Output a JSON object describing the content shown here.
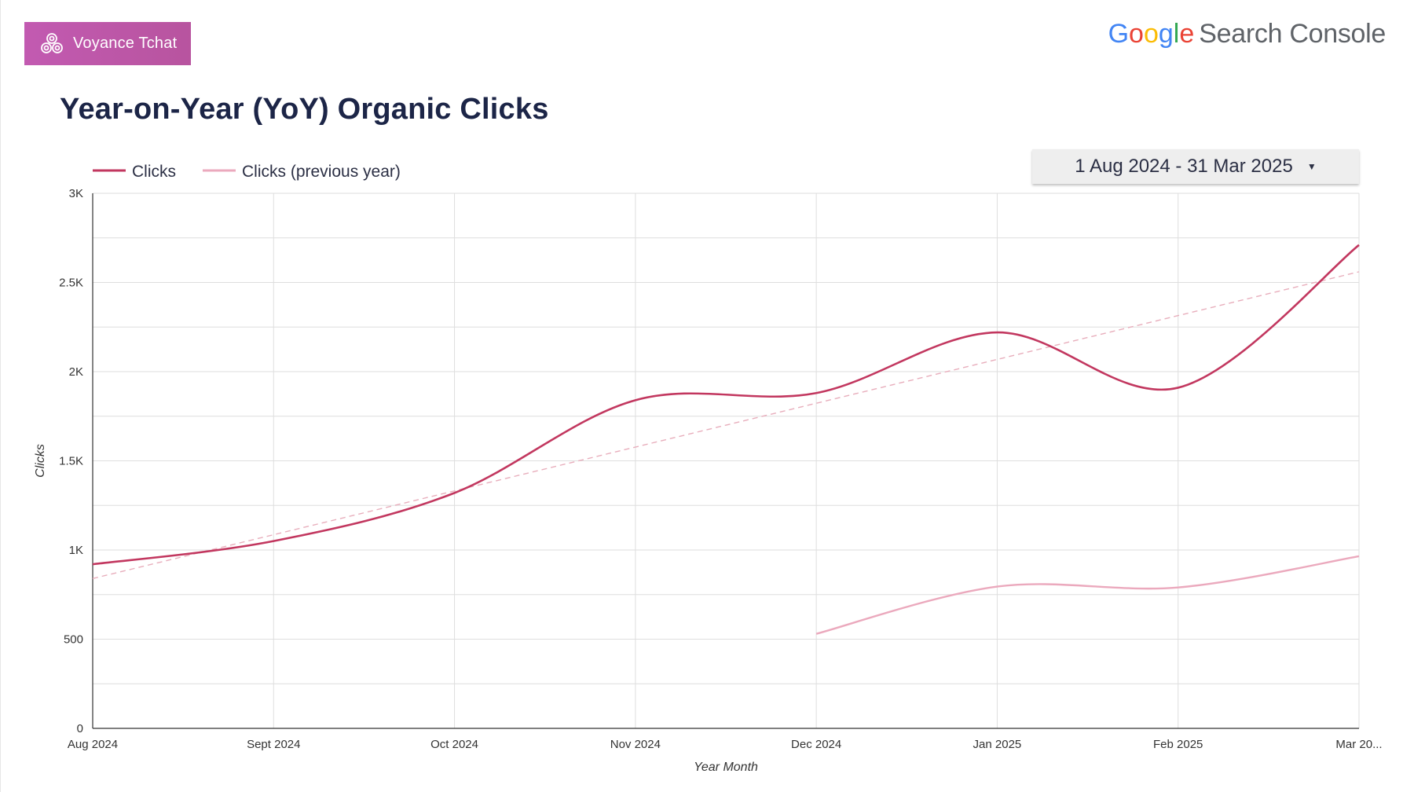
{
  "brand": {
    "name": "Voyance Tchat",
    "logo_icon": "triskelion-icon",
    "color": "#c25ab1"
  },
  "source_logo": {
    "google_letters": [
      "G",
      "o",
      "o",
      "g",
      "l",
      "e"
    ],
    "product": "Search Console"
  },
  "page": {
    "title": "Year-on-Year (YoY) Organic Clicks"
  },
  "date_range": {
    "label": "1 Aug 2024 - 31 Mar 2025",
    "icon": "caret-down-icon"
  },
  "chart_data": {
    "type": "line",
    "x_label": "Year Month",
    "y_label": "Clicks",
    "categories": [
      "Aug 2024",
      "Sept 2024",
      "Oct 2024",
      "Nov 2024",
      "Dec 2024",
      "Jan 2025",
      "Feb 2025",
      "Mar 20..."
    ],
    "y_ticks": [
      {
        "value": 0,
        "label": "0"
      },
      {
        "value": 500,
        "label": "500"
      },
      {
        "value": 1000,
        "label": "1K"
      },
      {
        "value": 1500,
        "label": "1.5K"
      },
      {
        "value": 2000,
        "label": "2K"
      },
      {
        "value": 2500,
        "label": "2.5K"
      },
      {
        "value": 3000,
        "label": "3K"
      }
    ],
    "ylim": [
      0,
      3000
    ],
    "grid": true,
    "legend_position": "top-left",
    "series": [
      {
        "name": "Clicks",
        "color": "#c2375f",
        "values": [
          920,
          1050,
          1320,
          1840,
          1880,
          2220,
          1910,
          2710
        ]
      },
      {
        "name": "Clicks (previous year)",
        "color": "#eba9bd",
        "values": [
          null,
          null,
          null,
          null,
          530,
          795,
          790,
          965
        ]
      }
    ],
    "trendline": {
      "series": "Clicks",
      "style": "dashed",
      "color": "#e8aebc",
      "start": 840,
      "end": 2560
    }
  }
}
